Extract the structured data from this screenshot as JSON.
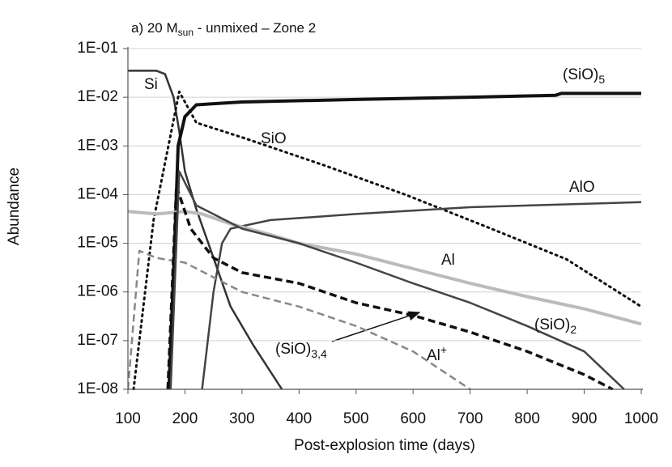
{
  "chart_data": {
    "type": "line",
    "title": "a) 20 M",
    "title_sub": "sun",
    "title_rest": "  - unmixed – Zone 2",
    "xlabel": "Post-explosion time (days)",
    "ylabel": "Abundance",
    "xlim": [
      100,
      1000
    ],
    "xticks": [
      100,
      200,
      300,
      400,
      500,
      600,
      700,
      800,
      900,
      1000
    ],
    "ylim": [
      1e-08,
      0.1
    ],
    "ylog": true,
    "yticks": [
      {
        "value": 0.1,
        "label": "1E-01"
      },
      {
        "value": 0.01,
        "label": "1E-02"
      },
      {
        "value": 0.001,
        "label": "1E-03"
      },
      {
        "value": 0.0001,
        "label": "1E-04"
      },
      {
        "value": 1e-05,
        "label": "1E-05"
      },
      {
        "value": 1e-06,
        "label": "1E-06"
      },
      {
        "value": 1e-07,
        "label": "1E-07"
      },
      {
        "value": 1e-08,
        "label": "1E-08"
      }
    ],
    "grid": true,
    "series": [
      {
        "name": "Si",
        "color": "#333333",
        "style": "solid",
        "linewidth": 2.5,
        "x": [
          100,
          150,
          165,
          180,
          190,
          200,
          220,
          250,
          280,
          320,
          370
        ],
        "values": [
          0.035,
          0.035,
          0.03,
          0.01,
          0.002,
          0.0003,
          5e-05,
          5e-06,
          5e-07,
          8e-08,
          1e-08
        ]
      },
      {
        "name": "SiO",
        "color": "#111111",
        "style": "dotted",
        "linewidth": 3,
        "x": [
          110,
          145,
          190,
          220,
          300,
          444,
          586,
          728,
          869,
          1000
        ],
        "values": [
          1e-08,
          3e-05,
          0.013,
          0.003,
          0.0015,
          0.0004,
          0.0001,
          2.2e-05,
          4.7e-06,
          5e-07
        ]
      },
      {
        "name": "(SiO)",
        "name_sub": "5",
        "color": "#111111",
        "style": "solid",
        "linewidth": 4,
        "x": [
          172,
          182,
          188,
          200,
          220,
          300,
          500,
          700,
          850,
          860,
          1000
        ],
        "values": [
          1e-08,
          1e-05,
          0.001,
          0.004,
          0.007,
          0.008,
          0.009,
          0.01,
          0.011,
          0.012,
          0.012
        ]
      },
      {
        "name": "AlO",
        "color": "#444444",
        "style": "solid",
        "linewidth": 2.5,
        "x": [
          230,
          250,
          265,
          280,
          350,
          500,
          700,
          1000
        ],
        "values": [
          1e-08,
          1e-06,
          1e-05,
          2e-05,
          3e-05,
          4e-05,
          5.5e-05,
          7e-05
        ]
      },
      {
        "name": "Al",
        "color": "#bbbbbb",
        "style": "solid",
        "linewidth": 4,
        "x": [
          100,
          150,
          200,
          230,
          280,
          350,
          400,
          500,
          600,
          700,
          800,
          900,
          1000
        ],
        "values": [
          4.5e-05,
          4e-05,
          4.5e-05,
          4e-05,
          2.5e-05,
          1.5e-05,
          1e-05,
          6e-06,
          3e-06,
          1.5e-06,
          8e-07,
          4.5e-07,
          2.2e-07
        ]
      },
      {
        "name": "Al",
        "name_sup": "+",
        "color": "#888888",
        "style": "dashed",
        "linewidth": 2.5,
        "x": [
          100,
          120,
          150,
          200,
          250,
          300,
          400,
          500,
          600,
          700
        ],
        "values": [
          1e-08,
          7e-06,
          5e-06,
          4e-06,
          2e-06,
          1e-06,
          5e-07,
          2e-07,
          6e-08,
          1e-08
        ]
      },
      {
        "name": "(SiO)",
        "name_sub": "3,4",
        "color": "#111111",
        "style": "dashed",
        "linewidth": 3.5,
        "x": [
          170,
          185,
          210,
          250,
          300,
          400,
          500,
          600,
          700,
          800,
          900,
          950
        ],
        "values": [
          1e-08,
          0.00015,
          2e-05,
          5e-06,
          2.5e-06,
          1.5e-06,
          6e-07,
          3.3e-07,
          1.5e-07,
          6e-08,
          2e-08,
          1e-08
        ]
      },
      {
        "name": "(SiO)",
        "name_sub": "2",
        "color": "#444444",
        "style": "solid",
        "linewidth": 2.5,
        "x": [
          175,
          190,
          220,
          300,
          400,
          500,
          600,
          700,
          800,
          900,
          970
        ],
        "values": [
          1e-08,
          0.0003,
          6e-05,
          2e-05,
          1e-05,
          4e-06,
          1.5e-06,
          6e-07,
          2e-07,
          6e-08,
          1e-08
        ]
      }
    ]
  }
}
